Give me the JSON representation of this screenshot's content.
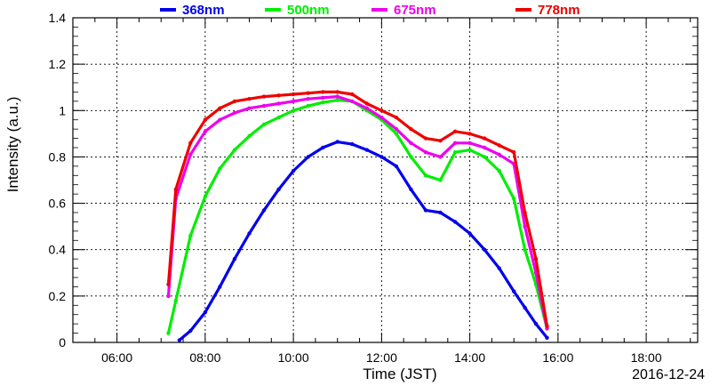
{
  "chart_data": {
    "type": "scatter",
    "title": "",
    "xlabel": "Time (JST)",
    "ylabel": "Intensity (a.u.)",
    "date_label": "2016-12-24",
    "xlim": [
      "05:00",
      "19:10"
    ],
    "ylim": [
      0,
      1.4
    ],
    "grid": true,
    "legend_position": "top",
    "x_ticks": [
      "06:00",
      "08:00",
      "10:00",
      "12:00",
      "14:00",
      "16:00",
      "18:00"
    ],
    "y_ticks": [
      "0",
      "0.2",
      "0.4",
      "0.6",
      "0.8",
      "1",
      "1.2",
      "1.4"
    ],
    "series": [
      {
        "name": "368nm",
        "color": "#0000ee",
        "x": [
          "07:25",
          "07:40",
          "08:00",
          "08:20",
          "08:40",
          "09:00",
          "09:20",
          "09:40",
          "10:00",
          "10:20",
          "10:40",
          "11:00",
          "11:20",
          "11:40",
          "12:00",
          "12:20",
          "12:40",
          "13:00",
          "13:20",
          "13:40",
          "14:00",
          "14:20",
          "14:40",
          "15:00",
          "15:15",
          "15:30",
          "15:45"
        ],
        "y": [
          0.01,
          0.05,
          0.13,
          0.24,
          0.36,
          0.47,
          0.57,
          0.66,
          0.74,
          0.8,
          0.84,
          0.865,
          0.855,
          0.83,
          0.8,
          0.76,
          0.66,
          0.57,
          0.56,
          0.52,
          0.47,
          0.4,
          0.32,
          0.22,
          0.15,
          0.08,
          0.02
        ]
      },
      {
        "name": "500nm",
        "color": "#00ee00",
        "x": [
          "07:10",
          "07:20",
          "07:40",
          "08:00",
          "08:20",
          "08:40",
          "09:00",
          "09:20",
          "09:40",
          "10:00",
          "10:20",
          "10:40",
          "11:00",
          "11:20",
          "11:40",
          "12:00",
          "12:20",
          "12:40",
          "13:00",
          "13:20",
          "13:40",
          "14:00",
          "14:20",
          "14:40",
          "15:00",
          "15:15",
          "15:30",
          "15:45"
        ],
        "y": [
          0.04,
          0.18,
          0.46,
          0.63,
          0.75,
          0.83,
          0.89,
          0.94,
          0.97,
          1.0,
          1.02,
          1.035,
          1.045,
          1.04,
          1.0,
          0.96,
          0.9,
          0.8,
          0.72,
          0.7,
          0.82,
          0.83,
          0.8,
          0.74,
          0.62,
          0.4,
          0.25,
          0.06
        ]
      },
      {
        "name": "675nm",
        "color": "#ee00ee",
        "x": [
          "07:10",
          "07:20",
          "07:40",
          "08:00",
          "08:20",
          "08:40",
          "09:00",
          "09:20",
          "09:40",
          "10:00",
          "10:20",
          "10:40",
          "11:00",
          "11:20",
          "11:40",
          "12:00",
          "12:20",
          "12:40",
          "13:00",
          "13:20",
          "13:40",
          "14:00",
          "14:20",
          "14:40",
          "15:00",
          "15:15",
          "15:30",
          "15:45"
        ],
        "y": [
          0.2,
          0.62,
          0.81,
          0.91,
          0.96,
          0.99,
          1.01,
          1.02,
          1.03,
          1.04,
          1.05,
          1.055,
          1.06,
          1.04,
          1.01,
          0.97,
          0.92,
          0.86,
          0.82,
          0.8,
          0.86,
          0.86,
          0.84,
          0.81,
          0.77,
          0.5,
          0.3,
          0.06
        ]
      },
      {
        "name": "778nm",
        "color": "#ee0000",
        "x": [
          "07:10",
          "07:20",
          "07:40",
          "08:00",
          "08:20",
          "08:40",
          "09:00",
          "09:20",
          "09:40",
          "10:00",
          "10:20",
          "10:40",
          "11:00",
          "11:20",
          "11:40",
          "12:00",
          "12:20",
          "12:40",
          "13:00",
          "13:20",
          "13:40",
          "14:00",
          "14:20",
          "14:40",
          "15:00",
          "15:15",
          "15:30",
          "15:45"
        ],
        "y": [
          0.25,
          0.66,
          0.86,
          0.96,
          1.01,
          1.04,
          1.05,
          1.06,
          1.065,
          1.07,
          1.075,
          1.08,
          1.08,
          1.07,
          1.03,
          1.0,
          0.97,
          0.92,
          0.88,
          0.87,
          0.91,
          0.9,
          0.88,
          0.85,
          0.82,
          0.56,
          0.36,
          0.07
        ]
      }
    ]
  }
}
